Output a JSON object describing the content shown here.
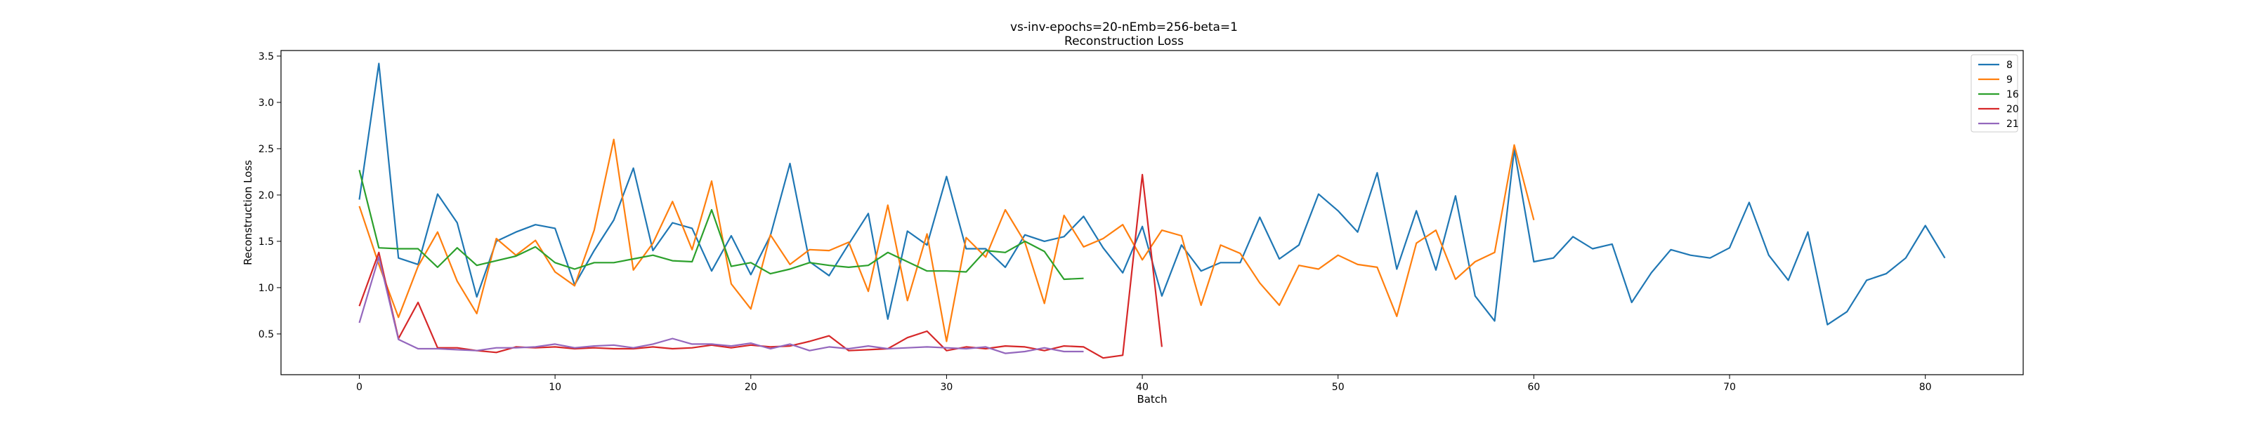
{
  "chart_data": {
    "type": "line",
    "title": "vs-inv-epochs=20-nEmb=256-beta=1",
    "subtitle": "Reconstruction Loss",
    "xlabel": "Batch",
    "ylabel": "Reconstruction Loss",
    "xlim": [
      -4,
      85
    ],
    "ylim": [
      0.06,
      3.56
    ],
    "xticks": [
      0,
      10,
      20,
      30,
      40,
      50,
      60,
      70,
      80
    ],
    "yticks": [
      0.5,
      1.0,
      1.5,
      2.0,
      2.5,
      3.0,
      3.5
    ],
    "ytick_labels": [
      "0.5",
      "1.0",
      "1.5",
      "2.0",
      "2.5",
      "3.0",
      "3.5"
    ],
    "grid": false,
    "legend_position": "top-right",
    "series": [
      {
        "name": "8",
        "color": "#1f77b4",
        "values": [
          1.95,
          3.42,
          1.32,
          1.25,
          2.01,
          1.7,
          0.9,
          1.5,
          1.6,
          1.68,
          1.64,
          1.03,
          1.4,
          1.73,
          2.29,
          1.4,
          1.7,
          1.64,
          1.18,
          1.56,
          1.14,
          1.56,
          2.34,
          1.28,
          1.13,
          1.47,
          1.8,
          0.66,
          1.61,
          1.46,
          2.2,
          1.42,
          1.42,
          1.22,
          1.57,
          1.5,
          1.55,
          1.77,
          1.43,
          1.16,
          1.66,
          0.91,
          1.46,
          1.18,
          1.27,
          1.27,
          1.76,
          1.31,
          1.46,
          2.01,
          1.83,
          1.6,
          2.24,
          1.2,
          1.83,
          1.19,
          1.99,
          0.91,
          0.64,
          2.49,
          1.28,
          1.32,
          1.55,
          1.42,
          1.47,
          0.84,
          1.16,
          1.41,
          1.35,
          1.32,
          1.43,
          1.92,
          1.35,
          1.08,
          1.6,
          0.6,
          0.74,
          1.08,
          1.15,
          1.32,
          1.67,
          1.32
        ]
      },
      {
        "name": "9",
        "color": "#ff7f0e",
        "values": [
          1.88,
          1.25,
          0.68,
          1.23,
          1.6,
          1.07,
          0.72,
          1.53,
          1.35,
          1.51,
          1.17,
          1.02,
          1.62,
          2.6,
          1.19,
          1.48,
          1.93,
          1.41,
          2.15,
          1.04,
          0.77,
          1.57,
          1.25,
          1.41,
          1.4,
          1.49,
          0.96,
          1.89,
          0.86,
          1.58,
          0.42,
          1.54,
          1.33,
          1.84,
          1.49,
          0.83,
          1.78,
          1.44,
          1.53,
          1.68,
          1.3,
          1.62,
          1.56,
          0.81,
          1.46,
          1.37,
          1.05,
          0.81,
          1.24,
          1.2,
          1.35,
          1.25,
          1.22,
          0.69,
          1.48,
          1.62,
          1.09,
          1.28,
          1.38,
          2.54,
          1.73
        ]
      },
      {
        "name": "16",
        "color": "#2ca02c",
        "values": [
          2.27,
          1.43,
          1.42,
          1.42,
          1.22,
          1.43,
          1.24,
          1.29,
          1.34,
          1.44,
          1.27,
          1.2,
          1.27,
          1.27,
          1.31,
          1.35,
          1.29,
          1.28,
          1.84,
          1.23,
          1.27,
          1.15,
          1.2,
          1.27,
          1.24,
          1.22,
          1.24,
          1.38,
          1.28,
          1.18,
          1.18,
          1.17,
          1.4,
          1.38,
          1.5,
          1.39,
          1.09,
          1.1
        ]
      },
      {
        "name": "20",
        "color": "#d62728",
        "values": [
          0.8,
          1.38,
          0.45,
          0.84,
          0.35,
          0.35,
          0.32,
          0.3,
          0.36,
          0.35,
          0.36,
          0.34,
          0.35,
          0.34,
          0.34,
          0.36,
          0.34,
          0.35,
          0.38,
          0.35,
          0.38,
          0.36,
          0.37,
          0.42,
          0.48,
          0.32,
          0.33,
          0.34,
          0.46,
          0.53,
          0.32,
          0.36,
          0.34,
          0.37,
          0.36,
          0.32,
          0.37,
          0.36,
          0.24,
          0.27,
          2.22,
          0.36
        ]
      },
      {
        "name": "21",
        "color": "#9467bd",
        "values": [
          0.62,
          1.33,
          0.44,
          0.34,
          0.34,
          0.33,
          0.32,
          0.35,
          0.35,
          0.36,
          0.39,
          0.35,
          0.37,
          0.38,
          0.35,
          0.39,
          0.45,
          0.39,
          0.39,
          0.37,
          0.4,
          0.34,
          0.39,
          0.32,
          0.36,
          0.34,
          0.37,
          0.34,
          0.35,
          0.36,
          0.35,
          0.34,
          0.36,
          0.29,
          0.31,
          0.35,
          0.31,
          0.31
        ]
      }
    ]
  }
}
